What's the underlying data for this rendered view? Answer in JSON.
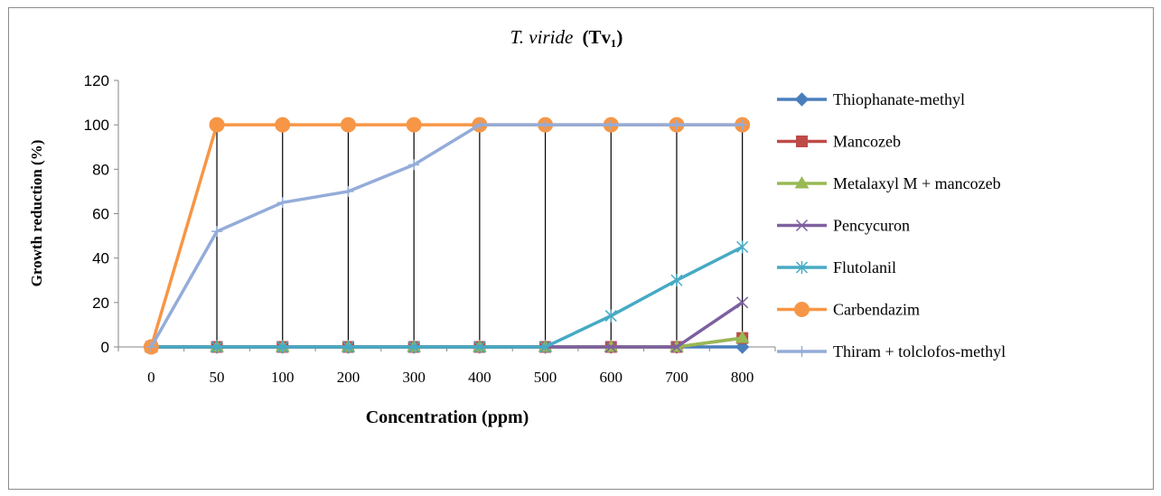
{
  "chart_data": {
    "type": "line",
    "title": "T. viride (Tv₁)",
    "title_italic_part": "T. viride",
    "title_bold_part": "(Tv₁)",
    "xlabel": "Concentration (ppm)",
    "ylabel": "Growth reduction (%)",
    "categories": [
      "0",
      "50",
      "100",
      "200",
      "300",
      "400",
      "500",
      "600",
      "700",
      "800"
    ],
    "ylim": [
      0,
      120
    ],
    "yticks": [
      0,
      20,
      40,
      60,
      80,
      100,
      120
    ],
    "grid": "vertical drop lines at each category",
    "legend_position": "right",
    "series": [
      {
        "name": "Thiophanate-methyl",
        "color": "#4a7ebb",
        "marker": "diamond",
        "values": [
          0,
          0,
          0,
          0,
          0,
          0,
          0,
          0,
          0,
          0
        ]
      },
      {
        "name": "Mancozeb",
        "color": "#be4b48",
        "marker": "square",
        "values": [
          0,
          0,
          0,
          0,
          0,
          0,
          0,
          0,
          0,
          4
        ]
      },
      {
        "name": "Metalaxyl M + mancozeb",
        "color": "#98b954",
        "marker": "triangle",
        "values": [
          0,
          0,
          0,
          0,
          0,
          0,
          0,
          0,
          0,
          4
        ]
      },
      {
        "name": "Pencycuron",
        "color": "#7d60a0",
        "marker": "x",
        "values": [
          0,
          0,
          0,
          0,
          0,
          0,
          0,
          0,
          0,
          20
        ]
      },
      {
        "name": "Flutolanil",
        "color": "#46aac4",
        "marker": "star",
        "values": [
          0,
          0,
          0,
          0,
          0,
          0,
          0,
          14,
          30,
          45
        ]
      },
      {
        "name": "Carbendazim",
        "color": "#f79646",
        "marker": "circle",
        "values": [
          0,
          100,
          100,
          100,
          100,
          100,
          100,
          100,
          100,
          100
        ]
      },
      {
        "name": "Thiram + tolclofos-methyl",
        "color": "#94acd9",
        "marker": "plus",
        "values": [
          0,
          52,
          65,
          70,
          82,
          100,
          100,
          100,
          100,
          100
        ]
      }
    ]
  }
}
